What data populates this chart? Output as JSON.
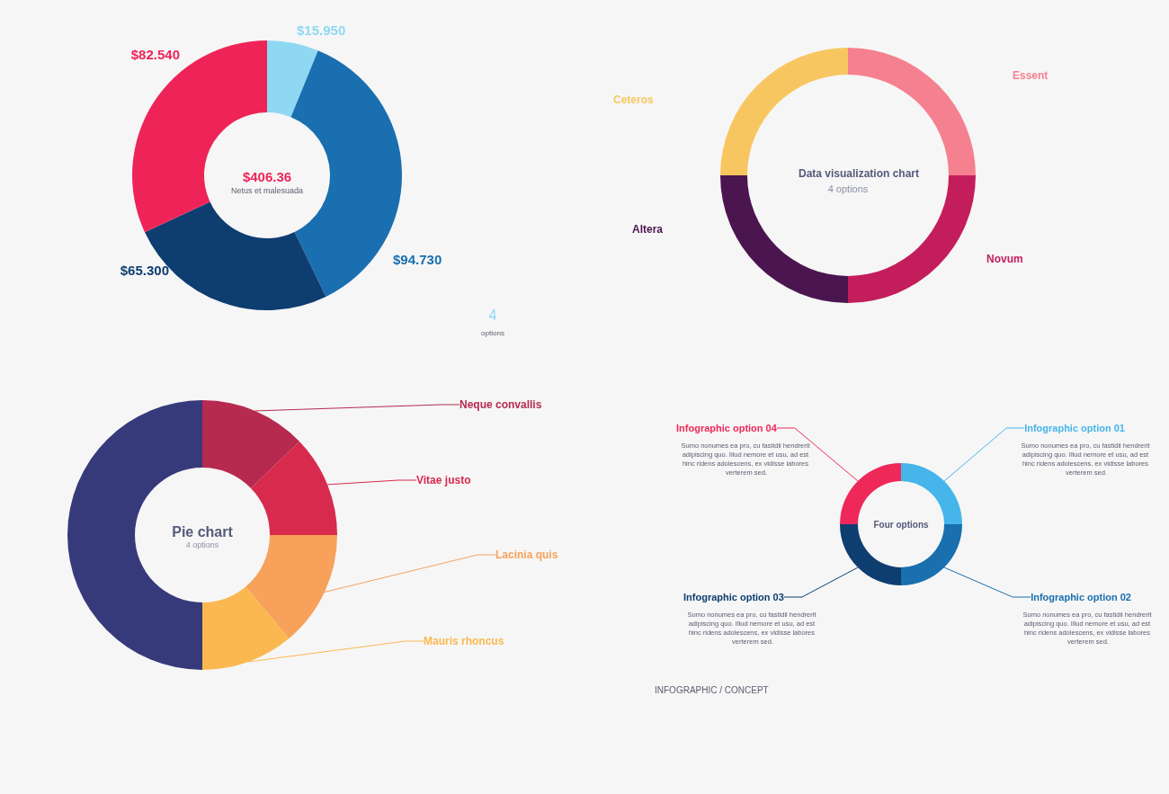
{
  "chart_data": [
    {
      "type": "donut",
      "categories": [
        null,
        null,
        null,
        null
      ],
      "values": [
        15.95,
        94.73,
        65.3,
        82.54
      ],
      "colors": [
        "#8fd8f3",
        "#1a6fb0",
        "#0e3d70",
        "#ee2458"
      ],
      "value_labels": [
        "$15.950",
        "$94.730",
        "$65.300",
        "$82.540"
      ],
      "legend": false,
      "annotations": [
        "$406.36",
        "Netus et malesuada",
        "4",
        "options"
      ]
    },
    {
      "type": "donut",
      "title": "Data visualization chart",
      "subtitle": "4 options",
      "categories": [
        "Essent",
        "Novum",
        "Altera",
        "Ceteros"
      ],
      "values": [
        25,
        25,
        25,
        25
      ],
      "colors": [
        "#f5808f",
        "#c41d5c",
        "#4b1550",
        "#f8c660"
      ],
      "legend": false
    },
    {
      "type": "donut",
      "title": "Pie chart",
      "subtitle": "4 options",
      "categories": [
        "Neque convallis",
        "Vitae justo",
        "Lacinia quis",
        "Mauris rhoncus",
        null
      ],
      "values": [
        12.8,
        12.2,
        13.9,
        11.1,
        50
      ],
      "colors": [
        "#b62a50",
        "#d82a4d",
        "#f7a15a",
        "#fbb850",
        "#373a7a"
      ],
      "legend": false
    },
    {
      "type": "donut",
      "title": "Four options",
      "categories": [
        "Infographic option 01",
        "Infographic option 02",
        "Infographic option 03",
        "Infographic option 04"
      ],
      "values": [
        25,
        25,
        25,
        25
      ],
      "colors": [
        "#45b5ea",
        "#1a6faf",
        "#0e3d70",
        "#ef285a"
      ],
      "legend": false,
      "annotations": [
        "Sumo nonumes ea pro, cu fastidii hendrerit adipiscing quo. Illud nemore et usu, ad est hinc ridens adolescens, ex vidisse labores verterem sed.",
        "Sumo nonumes ea pro, cu fastidii hendrerit adipiscing quo. Illud nemore et usu, ad est hinc ridens adolescens, ex vidisse labores verterem sed.",
        "Sumo nonumes ea pro, cu fastidii hendrerit adipiscing quo. Illud nemore et usu, ad est hinc ridens adolescens, ex vidisse labores verterem sed.",
        "Sumo nonumes ea pro, cu fastidii hendrerit adipiscing quo. Illud nemore et usu, ad est hinc ridens adolescens, ex vidisse labores verterem sed.",
        "INFOGRAPHIC / CONCEPT"
      ]
    }
  ]
}
